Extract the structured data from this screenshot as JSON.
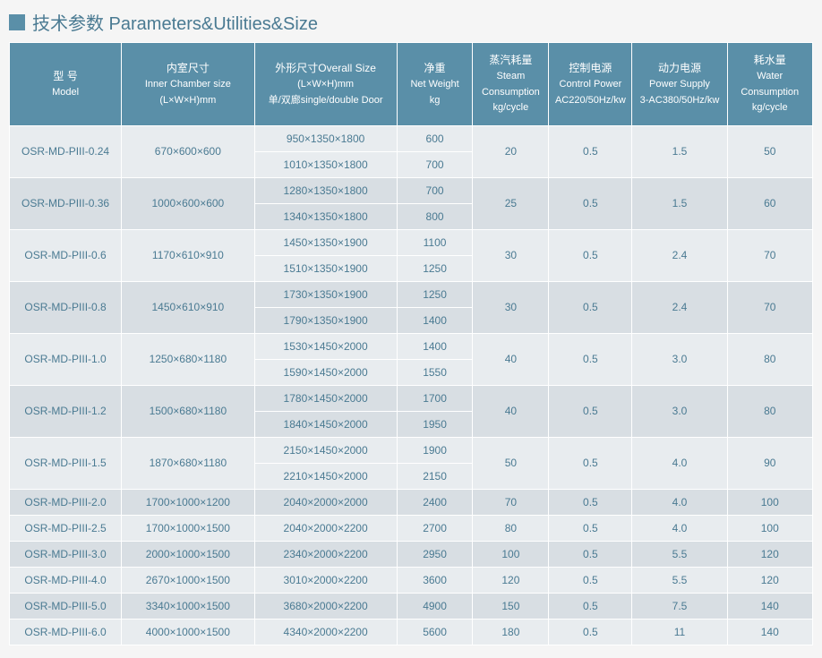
{
  "title": "技术参数 Parameters&Utilities&Size",
  "colors": {
    "header_bg": "#5a8fa8",
    "header_text": "#ffffff",
    "cell_text": "#4a7a92",
    "row_odd_bg": "#e8ecef",
    "row_even_bg": "#d8dee3",
    "border": "#ffffff",
    "title_color": "#4a7a92"
  },
  "headers": [
    {
      "cn": "型 号",
      "en": "Model"
    },
    {
      "cn": "内室尺寸",
      "en": "Inner Chamber size",
      "en2": "(L×W×H)mm"
    },
    {
      "cn": "外形尺寸Overall Size",
      "en": "(L×W×H)mm",
      "en2": "单/双廊single/double Door"
    },
    {
      "cn": "净重",
      "en": "Net Weight",
      "en2": "kg"
    },
    {
      "cn": "蒸汽耗量",
      "en": "Steam Consumption",
      "en2": "kg/cycle"
    },
    {
      "cn": "控制电源",
      "en": "Control Power",
      "en2": "AC220/50Hz/kw"
    },
    {
      "cn": "动力电源",
      "en": "Power Supply",
      "en2": "3-AC380/50Hz/kw"
    },
    {
      "cn": "耗水量",
      "en": "Water Consumption",
      "en2": "kg/cycle"
    }
  ],
  "rows": [
    {
      "model": "OSR-MD-PIII-0.24",
      "inner": "670×600×600",
      "overall": [
        "950×1350×1800",
        "1010×1350×1800"
      ],
      "weight": [
        "600",
        "700"
      ],
      "steam": "20",
      "control": "0.5",
      "power": "1.5",
      "water": "50",
      "shade": "r1"
    },
    {
      "model": "OSR-MD-PIII-0.36",
      "inner": "1000×600×600",
      "overall": [
        "1280×1350×1800",
        "1340×1350×1800"
      ],
      "weight": [
        "700",
        "800"
      ],
      "steam": "25",
      "control": "0.5",
      "power": "1.5",
      "water": "60",
      "shade": "r0"
    },
    {
      "model": "OSR-MD-PIII-0.6",
      "inner": "1170×610×910",
      "overall": [
        "1450×1350×1900",
        "1510×1350×1900"
      ],
      "weight": [
        "1100",
        "1250"
      ],
      "steam": "30",
      "control": "0.5",
      "power": "2.4",
      "water": "70",
      "shade": "r1"
    },
    {
      "model": "OSR-MD-PIII-0.8",
      "inner": "1450×610×910",
      "overall": [
        "1730×1350×1900",
        "1790×1350×1900"
      ],
      "weight": [
        "1250",
        "1400"
      ],
      "steam": "30",
      "control": "0.5",
      "power": "2.4",
      "water": "70",
      "shade": "r0"
    },
    {
      "model": "OSR-MD-PIII-1.0",
      "inner": "1250×680×1180",
      "overall": [
        "1530×1450×2000",
        "1590×1450×2000"
      ],
      "weight": [
        "1400",
        "1550"
      ],
      "steam": "40",
      "control": "0.5",
      "power": "3.0",
      "water": "80",
      "shade": "r1"
    },
    {
      "model": "OSR-MD-PIII-1.2",
      "inner": "1500×680×1180",
      "overall": [
        "1780×1450×2000",
        "1840×1450×2000"
      ],
      "weight": [
        "1700",
        "1950"
      ],
      "steam": "40",
      "control": "0.5",
      "power": "3.0",
      "water": "80",
      "shade": "r0"
    },
    {
      "model": "OSR-MD-PIII-1.5",
      "inner": "1870×680×1180",
      "overall": [
        "2150×1450×2000",
        "2210×1450×2000"
      ],
      "weight": [
        "1900",
        "2150"
      ],
      "steam": "50",
      "control": "0.5",
      "power": "4.0",
      "water": "90",
      "shade": "r1"
    },
    {
      "model": "OSR-MD-PIII-2.0",
      "inner": "1700×1000×1200",
      "overall": [
        "2040×2000×2000"
      ],
      "weight": [
        "2400"
      ],
      "steam": "70",
      "control": "0.5",
      "power": "4.0",
      "water": "100",
      "shade": "r0"
    },
    {
      "model": "OSR-MD-PIII-2.5",
      "inner": "1700×1000×1500",
      "overall": [
        "2040×2000×2200"
      ],
      "weight": [
        "2700"
      ],
      "steam": "80",
      "control": "0.5",
      "power": "4.0",
      "water": "100",
      "shade": "r1"
    },
    {
      "model": "OSR-MD-PIII-3.0",
      "inner": "2000×1000×1500",
      "overall": [
        "2340×2000×2200"
      ],
      "weight": [
        "2950"
      ],
      "steam": "100",
      "control": "0.5",
      "power": "5.5",
      "water": "120",
      "shade": "r0"
    },
    {
      "model": "OSR-MD-PIII-4.0",
      "inner": "2670×1000×1500",
      "overall": [
        "3010×2000×2200"
      ],
      "weight": [
        "3600"
      ],
      "steam": "120",
      "control": "0.5",
      "power": "5.5",
      "water": "120",
      "shade": "r1"
    },
    {
      "model": "OSR-MD-PIII-5.0",
      "inner": "3340×1000×1500",
      "overall": [
        "3680×2000×2200"
      ],
      "weight": [
        "4900"
      ],
      "steam": "150",
      "control": "0.5",
      "power": "7.5",
      "water": "140",
      "shade": "r0"
    },
    {
      "model": "OSR-MD-PIII-6.0",
      "inner": "4000×1000×1500",
      "overall": [
        "4340×2000×2200"
      ],
      "weight": [
        "5600"
      ],
      "steam": "180",
      "control": "0.5",
      "power": "11",
      "water": "140",
      "shade": "r1"
    }
  ]
}
